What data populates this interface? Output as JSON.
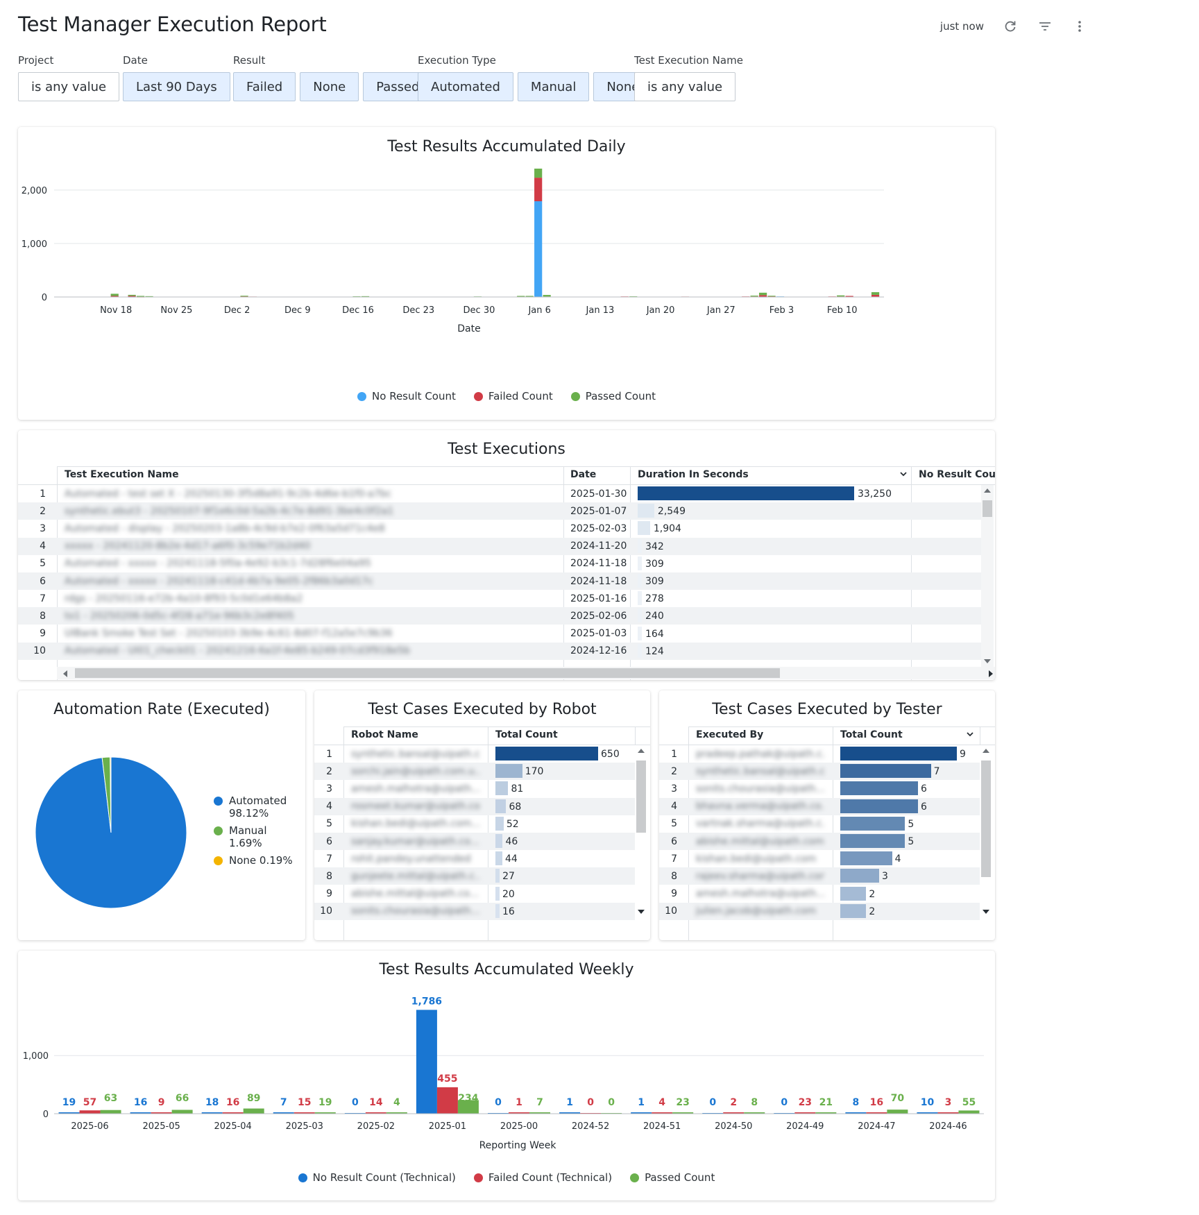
{
  "header": {
    "title": "Test Manager Execution Report",
    "updated": "just now"
  },
  "filters": {
    "project": {
      "label": "Project",
      "chips": [
        "is any value"
      ]
    },
    "date": {
      "label": "Date",
      "chips": [
        "Last 90 Days"
      ]
    },
    "result": {
      "label": "Result",
      "chips": [
        "Failed",
        "None",
        "Passed"
      ]
    },
    "execution_type": {
      "label": "Execution Type",
      "chips": [
        "Automated",
        "Manual",
        "None"
      ]
    },
    "test_execution_name": {
      "label": "Test Execution Name",
      "chips": [
        "is any value"
      ]
    }
  },
  "daily": {
    "title": "Test Results Accumulated Daily",
    "xlabel": "Date",
    "legend": [
      "No Result Count",
      "Failed Count",
      "Passed Count"
    ]
  },
  "executions": {
    "title": "Test Executions",
    "columns": [
      "Test Execution Name",
      "Date",
      "Duration In Seconds",
      "No Result Count"
    ],
    "rows": [
      {
        "n": "1",
        "name": "Automated - test set X - 20250130-3f5d8a91-9c2b-4d6e-b1f0-a7bc",
        "date": "2025-01-30",
        "dur": "33,250",
        "v": 33250
      },
      {
        "n": "2",
        "name": "synthetic.ebut3 - 20250107-9f1e6c0d-5a2b-4c7e-8d91-3be4c0f2a1",
        "date": "2025-01-07",
        "dur": "2,549",
        "v": 2549
      },
      {
        "n": "3",
        "name": "Automated - display - 20250203-1a8b-4c9d-b7e2-0f63a5d71c4e8",
        "date": "2025-02-03",
        "dur": "1,904",
        "v": 1904
      },
      {
        "n": "4",
        "name": "xxxxx - 20241120-8b2e-4d17-a6f0-3c59e71b2d40",
        "date": "2024-11-20",
        "dur": "342",
        "v": 342
      },
      {
        "n": "5",
        "name": "Automated - xxxxx - 20241118-5f0a-4e92-b3c1-7d28f6e04a95",
        "date": "2024-11-18",
        "dur": "309",
        "v": 309
      },
      {
        "n": "6",
        "name": "Automated - xxxxx - 20241118-c41d-4b7a-9e05-2f86b3a0d17c",
        "date": "2024-11-18",
        "dur": "309",
        "v": 309
      },
      {
        "n": "7",
        "name": "rdgs - 20250116-e72b-4a10-8f93-5c0d1e64b8a2",
        "date": "2025-01-16",
        "dur": "278",
        "v": 278
      },
      {
        "n": "8",
        "name": "to1 - 20250206-0d5c-4f28-a71e-96b3c2e8f405",
        "date": "2025-02-06",
        "dur": "240",
        "v": 240
      },
      {
        "n": "9",
        "name": "UIBank Smoke Test Set - 20250103-3b9e-4c61-8d07-f12a5e7c9b36",
        "date": "2025-01-03",
        "dur": "164",
        "v": 164
      },
      {
        "n": "10",
        "name": "Automated - UI01_check01 - 20241216-6a1f-4e85-b249-07cd3f918e5b",
        "date": "2024-12-16",
        "dur": "124",
        "v": 124
      }
    ]
  },
  "automation_rate": {
    "title": "Automation Rate (Executed)",
    "legend": [
      {
        "label": "Automated",
        "pct": "98.12%",
        "value": 98.12,
        "color": "#1976d2"
      },
      {
        "label": "Manual",
        "pct": "1.69%",
        "value": 1.69,
        "color": "#6ab04c"
      },
      {
        "label": "None",
        "pct": "0.19%",
        "value": 0.19,
        "color": "#f4b400"
      }
    ]
  },
  "robot": {
    "title": "Test Cases Executed by Robot",
    "columns": [
      "Robot Name",
      "Total Count"
    ],
    "rows": [
      {
        "n": "1",
        "name": "synthetic.bansal@uipath.co...",
        "v": 650
      },
      {
        "n": "2",
        "name": "sorchi.jain@uipath.com.u...",
        "v": 170
      },
      {
        "n": "3",
        "name": "amesh.malhotra@uipath...",
        "v": 81
      },
      {
        "n": "4",
        "name": "rosmeet.kumar@uipath.co...",
        "v": 68
      },
      {
        "n": "5",
        "name": "kishan.bedi@uipath.com...",
        "v": 52
      },
      {
        "n": "6",
        "name": "sanjay.kumar@uipath.co...",
        "v": 46
      },
      {
        "n": "7",
        "name": "rohit.pandey.unattended",
        "v": 44
      },
      {
        "n": "8",
        "name": "gunjeete.mittal@uipath.c...",
        "v": 27
      },
      {
        "n": "9",
        "name": "abishe.mittal@uipath.co...",
        "v": 20
      },
      {
        "n": "10",
        "name": "sonits.chourasia@uipath...",
        "v": 16
      }
    ]
  },
  "tester": {
    "title": "Test Cases Executed by Tester",
    "columns": [
      "Executed By",
      "Total Count"
    ],
    "rows": [
      {
        "n": "1",
        "name": "pradeep.pathak@uipath.c...",
        "v": 9
      },
      {
        "n": "2",
        "name": "synthetic.bansal@uipath.com",
        "v": 7
      },
      {
        "n": "3",
        "name": "sonits.chourasia@uipath...",
        "v": 6
      },
      {
        "n": "4",
        "name": "bhavna.verma@uipath.co...",
        "v": 6
      },
      {
        "n": "5",
        "name": "vartnak.sharma@uipath.c...",
        "v": 5
      },
      {
        "n": "6",
        "name": "abishe.mittal@uipath.com",
        "v": 5
      },
      {
        "n": "7",
        "name": "kishan.bedi@uipath.com",
        "v": 4
      },
      {
        "n": "8",
        "name": "rajeev.sharma@uipath.com",
        "v": 3
      },
      {
        "n": "9",
        "name": "amesh.malhotra@uipath...",
        "v": 2
      },
      {
        "n": "10",
        "name": "julien.jacob@uipath.com",
        "v": 2
      }
    ]
  },
  "weekly": {
    "title": "Test Results Accumulated Weekly",
    "xlabel": "Reporting Week",
    "legend": [
      "No Result Count (Technical)",
      "Failed Count (Technical)",
      "Passed Count"
    ]
  },
  "chart_data": [
    {
      "type": "bar",
      "stacked": true,
      "title": "Test Results Accumulated Daily",
      "xlabel": "Date",
      "ylabel": "",
      "ylim": [
        0,
        2400
      ],
      "yticks": [
        "0",
        "1,000",
        "2,000"
      ],
      "xticks": [
        "Nov 18",
        "Nov 25",
        "Dec 2",
        "Dec 9",
        "Dec 16",
        "Dec 23",
        "Dec 30",
        "Jan 6",
        "Jan 13",
        "Jan 20",
        "Jan 27",
        "Feb 3",
        "Feb 10"
      ],
      "grid": true,
      "legend_position": "bottom",
      "colors": [
        "#42a5f5",
        "#d13b46",
        "#6ab04c"
      ],
      "series_names": [
        "No Result Count",
        "Failed Count",
        "Passed Count"
      ],
      "x": [
        "2024-11-18",
        "2024-11-19",
        "2024-11-20",
        "2024-11-21",
        "2024-11-22",
        "2024-12-03",
        "2024-12-04",
        "2024-12-16",
        "2024-12-17",
        "2024-12-30",
        "2025-01-04",
        "2025-01-05",
        "2025-01-06",
        "2025-01-07",
        "2025-01-16",
        "2025-01-17",
        "2025-01-23",
        "2025-01-30",
        "2025-01-31",
        "2025-02-01",
        "2025-02-02",
        "2025-02-03",
        "2025-02-04",
        "2025-02-05",
        "2025-02-09",
        "2025-02-10",
        "2025-02-11",
        "2025-02-12",
        "2025-02-14"
      ],
      "no_result": [
        10,
        0,
        5,
        0,
        0,
        0,
        0,
        0,
        0,
        0,
        0,
        0,
        1790,
        0,
        0,
        0,
        0,
        0,
        0,
        5,
        8,
        10,
        0,
        0,
        0,
        0,
        0,
        0,
        0
      ],
      "failed": [
        10,
        0,
        15,
        5,
        0,
        15,
        8,
        0,
        0,
        0,
        10,
        10,
        440,
        8,
        10,
        0,
        8,
        10,
        10,
        30,
        5,
        0,
        0,
        0,
        10,
        10,
        20,
        0,
        40
      ],
      "passed": [
        40,
        0,
        20,
        15,
        15,
        8,
        0,
        12,
        15,
        10,
        10,
        10,
        170,
        30,
        0,
        12,
        0,
        0,
        15,
        45,
        10,
        0,
        0,
        0,
        0,
        20,
        0,
        0,
        50
      ]
    },
    {
      "type": "table",
      "title": "Test Executions",
      "columns": [
        "Test Execution Name",
        "Date",
        "Duration In Seconds",
        "No Result Count"
      ]
    },
    {
      "type": "pie",
      "title": "Automation Rate (Executed)",
      "labels": [
        "Automated",
        "Manual",
        "None"
      ],
      "values": [
        98.12,
        1.69,
        0.19
      ],
      "legend_position": "right"
    },
    {
      "type": "table",
      "title": "Test Cases Executed by Robot",
      "columns": [
        "Robot Name",
        "Total Count"
      ],
      "values": [
        650,
        170,
        81,
        68,
        52,
        46,
        44,
        27,
        20,
        16
      ]
    },
    {
      "type": "table",
      "title": "Test Cases Executed by Tester",
      "columns": [
        "Executed By",
        "Total Count"
      ],
      "values": [
        9,
        7,
        6,
        6,
        5,
        5,
        4,
        3,
        2,
        2
      ]
    },
    {
      "type": "bar",
      "title": "Test Results Accumulated Weekly",
      "xlabel": "Reporting Week",
      "ylim": [
        0,
        1850
      ],
      "yticks": [
        "0",
        "1,000"
      ],
      "grid": true,
      "legend_position": "bottom",
      "categories": [
        "2025-06",
        "2025-05",
        "2025-04",
        "2025-03",
        "2025-02",
        "2025-01",
        "2025-00",
        "2024-52",
        "2024-51",
        "2024-50",
        "2024-49",
        "2024-47",
        "2024-46"
      ],
      "series": [
        {
          "name": "No Result Count (Technical)",
          "color": "#1976d2",
          "values": [
            19,
            16,
            18,
            7,
            0,
            1786,
            0,
            1,
            1,
            0,
            0,
            8,
            10
          ]
        },
        {
          "name": "Failed Count (Technical)",
          "color": "#d13b46",
          "values": [
            57,
            9,
            16,
            15,
            14,
            455,
            1,
            0,
            4,
            2,
            23,
            16,
            3
          ]
        },
        {
          "name": "Passed Count",
          "color": "#6ab04c",
          "values": [
            63,
            66,
            89,
            19,
            4,
            234,
            7,
            0,
            23,
            8,
            21,
            70,
            55
          ]
        }
      ]
    }
  ]
}
